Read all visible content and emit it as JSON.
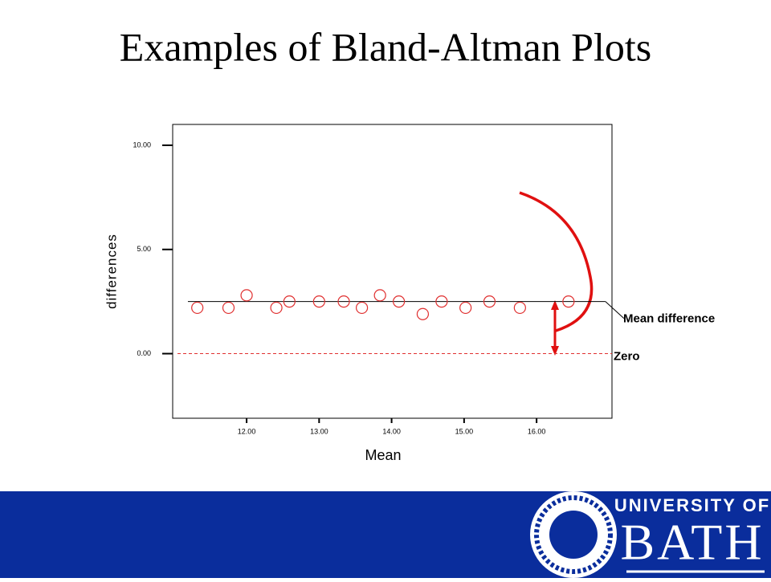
{
  "title": "Examples of Bland-Altman Plots",
  "chart_data": {
    "type": "scatter",
    "x_label": "Mean",
    "y_label": "differences",
    "x": [
      11.32,
      11.75,
      12.0,
      12.41,
      12.59,
      13.0,
      13.34,
      13.59,
      13.84,
      14.1,
      14.43,
      14.69,
      15.02,
      15.35,
      15.77,
      16.44
    ],
    "series": [
      {
        "color": "#e03030",
        "values": [
          2.2,
          2.2,
          2.8,
          2.2,
          2.5,
          2.5,
          2.5,
          2.2,
          2.8,
          2.5,
          1.9,
          2.5,
          2.2,
          2.5,
          2.2,
          2.5
        ]
      }
    ],
    "xlim": [
      10.98,
      17.04
    ],
    "ylim": [
      -3.1,
      11.0
    ],
    "xticks": [
      {
        "value": 12,
        "label": "12.00"
      },
      {
        "value": 13,
        "label": "13.00"
      },
      {
        "value": 14,
        "label": "14.00"
      },
      {
        "value": 15,
        "label": "15.00"
      },
      {
        "value": 16,
        "label": "16.00"
      }
    ],
    "yticks": [
      {
        "value": 0,
        "label": "0.00"
      },
      {
        "value": 5,
        "label": "5.00"
      },
      {
        "value": 10,
        "label": "10.00"
      }
    ],
    "mean_difference": {
      "value": 2.5,
      "xrange": [
        11.19,
        16.95
      ],
      "label": "Mean difference"
    },
    "zero_line": {
      "value": 0,
      "label": "Zero",
      "color": "#e03030"
    }
  },
  "footer": {
    "logo": {
      "line1": "UNIVERSITY OF",
      "line2": "BATH"
    }
  }
}
